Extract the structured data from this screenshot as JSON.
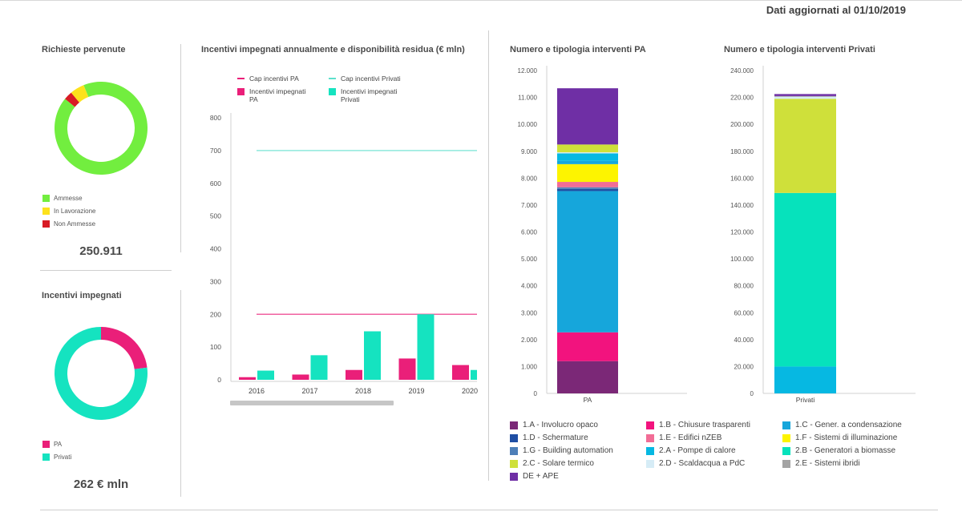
{
  "header": {
    "updated": "Dati aggiornati al 01/10/2019"
  },
  "richieste": {
    "title": "Richieste pervenute",
    "total": "250.911",
    "legend": [
      {
        "label": "Ammesse",
        "color": "#72ee3f",
        "value": 92
      },
      {
        "label": "In Lavorazione",
        "color": "#fde21c",
        "value": 5
      },
      {
        "label": "Non Ammesse",
        "color": "#d81b25",
        "value": 3
      }
    ]
  },
  "incentivi": {
    "title": "Incentivi impegnati",
    "total": "262 € mln",
    "legend": [
      {
        "label": "PA",
        "color": "#ea1f79",
        "value": 23
      },
      {
        "label": "Privati",
        "color": "#15e3c0",
        "value": 77
      }
    ]
  },
  "chart_data": [
    {
      "type": "bar",
      "title": "Incentivi impegnati annualmente e disponibilità residua (€ mln)",
      "categories": [
        "2016",
        "2017",
        "2018",
        "2019",
        "2020"
      ],
      "series": [
        {
          "name": "Incentivi impegnati PA",
          "color": "#ea1f79",
          "values": [
            8,
            16,
            30,
            65,
            45
          ]
        },
        {
          "name": "Incentivi impegnati Privati",
          "color": "#15e3c0",
          "values": [
            28,
            75,
            148,
            200,
            30
          ]
        }
      ],
      "reference_lines": [
        {
          "name": "Cap incentivi PA",
          "color": "#ea1f79",
          "value": 200
        },
        {
          "name": "Cap incentivi Privati",
          "color": "#5de0cc",
          "value": 700
        }
      ],
      "legend_labels": [
        "Cap incentivi PA",
        "Cap incentivi Privati",
        "Incentivi impegnati PA",
        "Incentivi impegnati Privati"
      ],
      "yticks": [
        "0",
        "100",
        "200",
        "300",
        "400",
        "500",
        "600",
        "700",
        "800"
      ],
      "ylim": [
        0,
        800
      ]
    },
    {
      "type": "bar",
      "title": "Numero e tipologia interventi PA",
      "categories": [
        "PA"
      ],
      "yticks": [
        "0",
        "1.000",
        "2.000",
        "3.000",
        "4.000",
        "5.000",
        "6.000",
        "7.000",
        "8.000",
        "9.000",
        "10.000",
        "11.000",
        "12.000"
      ],
      "ylim": [
        0,
        12000
      ],
      "stack": [
        {
          "code": "1.A",
          "value": 1200
        },
        {
          "code": "1.B",
          "value": 1070
        },
        {
          "code": "1.C",
          "value": 5250
        },
        {
          "code": "1.D",
          "value": 80
        },
        {
          "code": "1.G",
          "value": 60
        },
        {
          "code": "1.E",
          "value": 200
        },
        {
          "code": "1.F",
          "value": 660
        },
        {
          "code": "1.G2",
          "value": 120
        },
        {
          "code": "2.A",
          "value": 280
        },
        {
          "code": "2.D",
          "value": 40
        },
        {
          "code": "2.C",
          "value": 290
        },
        {
          "code": "DE",
          "value": 2090
        }
      ]
    },
    {
      "type": "bar",
      "title": "Numero e tipologia interventi Privati",
      "categories": [
        "Privati"
      ],
      "yticks": [
        "0",
        "20.000",
        "40.000",
        "60.000",
        "80.000",
        "100.000",
        "120.000",
        "140.000",
        "160.000",
        "180.000",
        "200.000",
        "220.000",
        "240.000"
      ],
      "ylim": [
        0,
        240000
      ],
      "stack": [
        {
          "code": "2.A",
          "value": 20000
        },
        {
          "code": "2.B",
          "value": 129000
        },
        {
          "code": "2.C",
          "value": 70000
        },
        {
          "code": "2.D",
          "value": 1500
        },
        {
          "code": "2.E",
          "value": 500
        },
        {
          "code": "DE",
          "value": 1500
        }
      ]
    }
  ],
  "categories_legend": [
    {
      "code": "1.A",
      "label": "1.A - Involucro opaco",
      "color": "#7b2877"
    },
    {
      "code": "1.B",
      "label": "1.B - Chiusure trasparenti",
      "color": "#f2137e"
    },
    {
      "code": "1.C",
      "label": "1.C - Gener. a condensazione",
      "color": "#16a6db"
    },
    {
      "code": "1.D",
      "label": "1.D - Schermature",
      "color": "#1f4ea3"
    },
    {
      "code": "1.E",
      "label": "1.E - Edifici nZEB",
      "color": "#f26d96"
    },
    {
      "code": "1.F",
      "label": "1.F - Sistemi di illuminazione",
      "color": "#fdf400"
    },
    {
      "code": "1.G",
      "label": "1.G - Building automation",
      "color": "#4d7fb8"
    },
    {
      "code": "2.A",
      "label": "2.A - Pompe di calore",
      "color": "#06b8e2"
    },
    {
      "code": "2.B",
      "label": "2.B - Generatori a biomasse",
      "color": "#06e2bc"
    },
    {
      "code": "2.C",
      "label": "2.C - Solare termico",
      "color": "#cfe03a"
    },
    {
      "code": "2.D",
      "label": "2.D - Scaldacqua a PdC",
      "color": "#d6ecf6"
    },
    {
      "code": "2.E",
      "label": "2.E - Sistemi ibridi",
      "color": "#a4a4a4"
    },
    {
      "code": "DE",
      "label": "DE + APE",
      "color": "#6f2fa5"
    }
  ],
  "extra_colors": {
    "1.G2": "#16a6db"
  }
}
